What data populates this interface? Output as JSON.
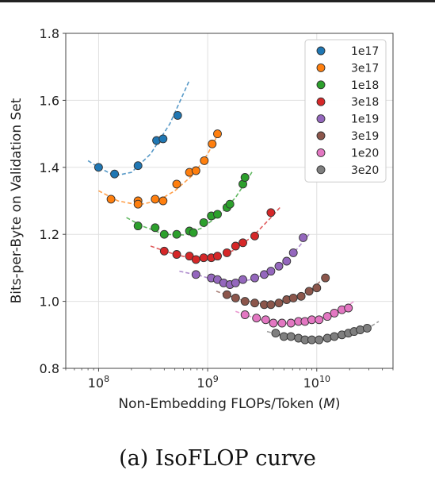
{
  "caption": "(a) IsoFLOP curve",
  "chart_data": {
    "type": "scatter",
    "xlabel_prefix": "Non-Embedding FLOPs/Token (",
    "xlabel_var": "M",
    "xlabel_suffix": ")",
    "ylabel": "Bits-per-Byte on Validation Set",
    "x_scale": "log",
    "xlim": [
      50000000,
      50000000000
    ],
    "ylim": [
      0.8,
      1.8
    ],
    "x_ticks": [
      {
        "value": 100000000,
        "base": "10",
        "exp": "8"
      },
      {
        "value": 1000000000,
        "base": "10",
        "exp": "9"
      },
      {
        "value": 10000000000,
        "base": "10",
        "exp": "10"
      }
    ],
    "y_ticks": [
      {
        "value": 0.8,
        "label": "0.8"
      },
      {
        "value": 1.0,
        "label": "1.0"
      },
      {
        "value": 1.2,
        "label": "1.2"
      },
      {
        "value": 1.4,
        "label": "1.4"
      },
      {
        "value": 1.6,
        "label": "1.6"
      },
      {
        "value": 1.8,
        "label": "1.8"
      }
    ],
    "grid": true,
    "legend_position": "top-right",
    "series": [
      {
        "name": "1e17",
        "color": "#1f77b4",
        "points": [
          [
            100000000,
            1.4
          ],
          [
            140000000,
            1.38
          ],
          [
            230000000,
            1.405
          ],
          [
            340000000,
            1.48
          ],
          [
            390000000,
            1.485
          ],
          [
            530000000,
            1.555
          ]
        ],
        "fit": [
          [
            80000000,
            1.42
          ],
          [
            100000000,
            1.4
          ],
          [
            140000000,
            1.375
          ],
          [
            200000000,
            1.385
          ],
          [
            300000000,
            1.44
          ],
          [
            450000000,
            1.53
          ],
          [
            680000000,
            1.66
          ]
        ]
      },
      {
        "name": "3e17",
        "color": "#ff7f0e",
        "points": [
          [
            130000000,
            1.305
          ],
          [
            230000000,
            1.3
          ],
          [
            230000000,
            1.29
          ],
          [
            330000000,
            1.305
          ],
          [
            390000000,
            1.3
          ],
          [
            520000000,
            1.35
          ],
          [
            680000000,
            1.385
          ],
          [
            780000000,
            1.39
          ],
          [
            930000000,
            1.42
          ],
          [
            1100000000,
            1.47
          ],
          [
            1230000000,
            1.5
          ]
        ],
        "fit": [
          [
            100000000,
            1.33
          ],
          [
            150000000,
            1.3
          ],
          [
            230000000,
            1.288
          ],
          [
            350000000,
            1.3
          ],
          [
            500000000,
            1.33
          ],
          [
            750000000,
            1.38
          ],
          [
            1000000000,
            1.44
          ],
          [
            1300000000,
            1.51
          ]
        ]
      },
      {
        "name": "1e18",
        "color": "#2ca02c",
        "points": [
          [
            230000000,
            1.225
          ],
          [
            330000000,
            1.22
          ],
          [
            400000000,
            1.2
          ],
          [
            520000000,
            1.2
          ],
          [
            680000000,
            1.21
          ],
          [
            740000000,
            1.205
          ],
          [
            920000000,
            1.235
          ],
          [
            1080000000,
            1.255
          ],
          [
            1230000000,
            1.26
          ],
          [
            1500000000,
            1.28
          ],
          [
            1600000000,
            1.29
          ],
          [
            2100000000,
            1.35
          ],
          [
            2200000000,
            1.37
          ]
        ],
        "fit": [
          [
            180000000,
            1.25
          ],
          [
            250000000,
            1.225
          ],
          [
            400000000,
            1.2
          ],
          [
            600000000,
            1.198
          ],
          [
            900000000,
            1.22
          ],
          [
            1300000000,
            1.26
          ],
          [
            1800000000,
            1.31
          ],
          [
            2600000000,
            1.39
          ]
        ]
      },
      {
        "name": "3e18",
        "color": "#d62728",
        "points": [
          [
            400000000,
            1.15
          ],
          [
            520000000,
            1.14
          ],
          [
            680000000,
            1.135
          ],
          [
            780000000,
            1.125
          ],
          [
            920000000,
            1.13
          ],
          [
            1080000000,
            1.13
          ],
          [
            1230000000,
            1.135
          ],
          [
            1500000000,
            1.145
          ],
          [
            1800000000,
            1.165
          ],
          [
            2100000000,
            1.175
          ],
          [
            2700000000,
            1.195
          ],
          [
            3800000000,
            1.265
          ]
        ],
        "fit": [
          [
            300000000,
            1.165
          ],
          [
            500000000,
            1.14
          ],
          [
            800000000,
            1.125
          ],
          [
            1200000000,
            1.13
          ],
          [
            1800000000,
            1.155
          ],
          [
            2700000000,
            1.2
          ],
          [
            3800000000,
            1.25
          ],
          [
            4600000000,
            1.28
          ]
        ]
      },
      {
        "name": "1e19",
        "color": "#9467bd",
        "points": [
          [
            780000000,
            1.08
          ],
          [
            1080000000,
            1.07
          ],
          [
            1230000000,
            1.065
          ],
          [
            1400000000,
            1.055
          ],
          [
            1600000000,
            1.05
          ],
          [
            1800000000,
            1.055
          ],
          [
            2100000000,
            1.065
          ],
          [
            2700000000,
            1.07
          ],
          [
            3300000000,
            1.08
          ],
          [
            3800000000,
            1.09
          ],
          [
            4500000000,
            1.105
          ],
          [
            5300000000,
            1.12
          ],
          [
            6100000000,
            1.145
          ],
          [
            7500000000,
            1.19
          ]
        ],
        "fit": [
          [
            550000000,
            1.09
          ],
          [
            900000000,
            1.075
          ],
          [
            1500000000,
            1.052
          ],
          [
            2500000000,
            1.065
          ],
          [
            4000000000,
            1.09
          ],
          [
            6000000000,
            1.14
          ],
          [
            8500000000,
            1.2
          ]
        ]
      },
      {
        "name": "3e19",
        "color": "#8c564b",
        "points": [
          [
            1500000000,
            1.02
          ],
          [
            1800000000,
            1.01
          ],
          [
            2200000000,
            1.0
          ],
          [
            2700000000,
            0.995
          ],
          [
            3300000000,
            0.99
          ],
          [
            3800000000,
            0.99
          ],
          [
            4500000000,
            0.995
          ],
          [
            5300000000,
            1.005
          ],
          [
            6100000000,
            1.01
          ],
          [
            7200000000,
            1.015
          ],
          [
            8500000000,
            1.03
          ],
          [
            10000000000,
            1.04
          ],
          [
            12000000000,
            1.07
          ]
        ],
        "fit": [
          [
            1200000000,
            1.03
          ],
          [
            2000000000,
            1.005
          ],
          [
            3500000000,
            0.99
          ],
          [
            6000000000,
            1.005
          ],
          [
            9000000000,
            1.035
          ],
          [
            12500000000,
            1.08
          ]
        ]
      },
      {
        "name": "1e20",
        "color": "#e377c2",
        "points": [
          [
            2200000000,
            0.96
          ],
          [
            2800000000,
            0.95
          ],
          [
            3400000000,
            0.945
          ],
          [
            4000000000,
            0.935
          ],
          [
            4800000000,
            0.935
          ],
          [
            5800000000,
            0.935
          ],
          [
            6800000000,
            0.94
          ],
          [
            7800000000,
            0.94
          ],
          [
            9000000000,
            0.945
          ],
          [
            10500000000,
            0.945
          ],
          [
            12500000000,
            0.955
          ],
          [
            14500000000,
            0.965
          ],
          [
            17000000000,
            0.975
          ],
          [
            19500000000,
            0.98
          ]
        ],
        "fit": [
          [
            1800000000,
            0.97
          ],
          [
            3000000000,
            0.945
          ],
          [
            5500000000,
            0.933
          ],
          [
            10000000000,
            0.945
          ],
          [
            16000000000,
            0.97
          ],
          [
            22000000000,
            1.0
          ]
        ]
      },
      {
        "name": "3e20",
        "color": "#7f7f7f",
        "points": [
          [
            4200000000,
            0.905
          ],
          [
            5000000000,
            0.895
          ],
          [
            5800000000,
            0.895
          ],
          [
            6800000000,
            0.89
          ],
          [
            7800000000,
            0.885
          ],
          [
            9000000000,
            0.885
          ],
          [
            10500000000,
            0.885
          ],
          [
            12500000000,
            0.89
          ],
          [
            14500000000,
            0.895
          ],
          [
            17000000000,
            0.9
          ],
          [
            19500000000,
            0.905
          ],
          [
            22000000000,
            0.91
          ],
          [
            25000000000,
            0.915
          ],
          [
            29000000000,
            0.92
          ]
        ],
        "fit": [
          [
            3500000000,
            0.91
          ],
          [
            6000000000,
            0.89
          ],
          [
            10000000000,
            0.882
          ],
          [
            18000000000,
            0.895
          ],
          [
            28000000000,
            0.915
          ],
          [
            37000000000,
            0.94
          ]
        ]
      }
    ]
  }
}
